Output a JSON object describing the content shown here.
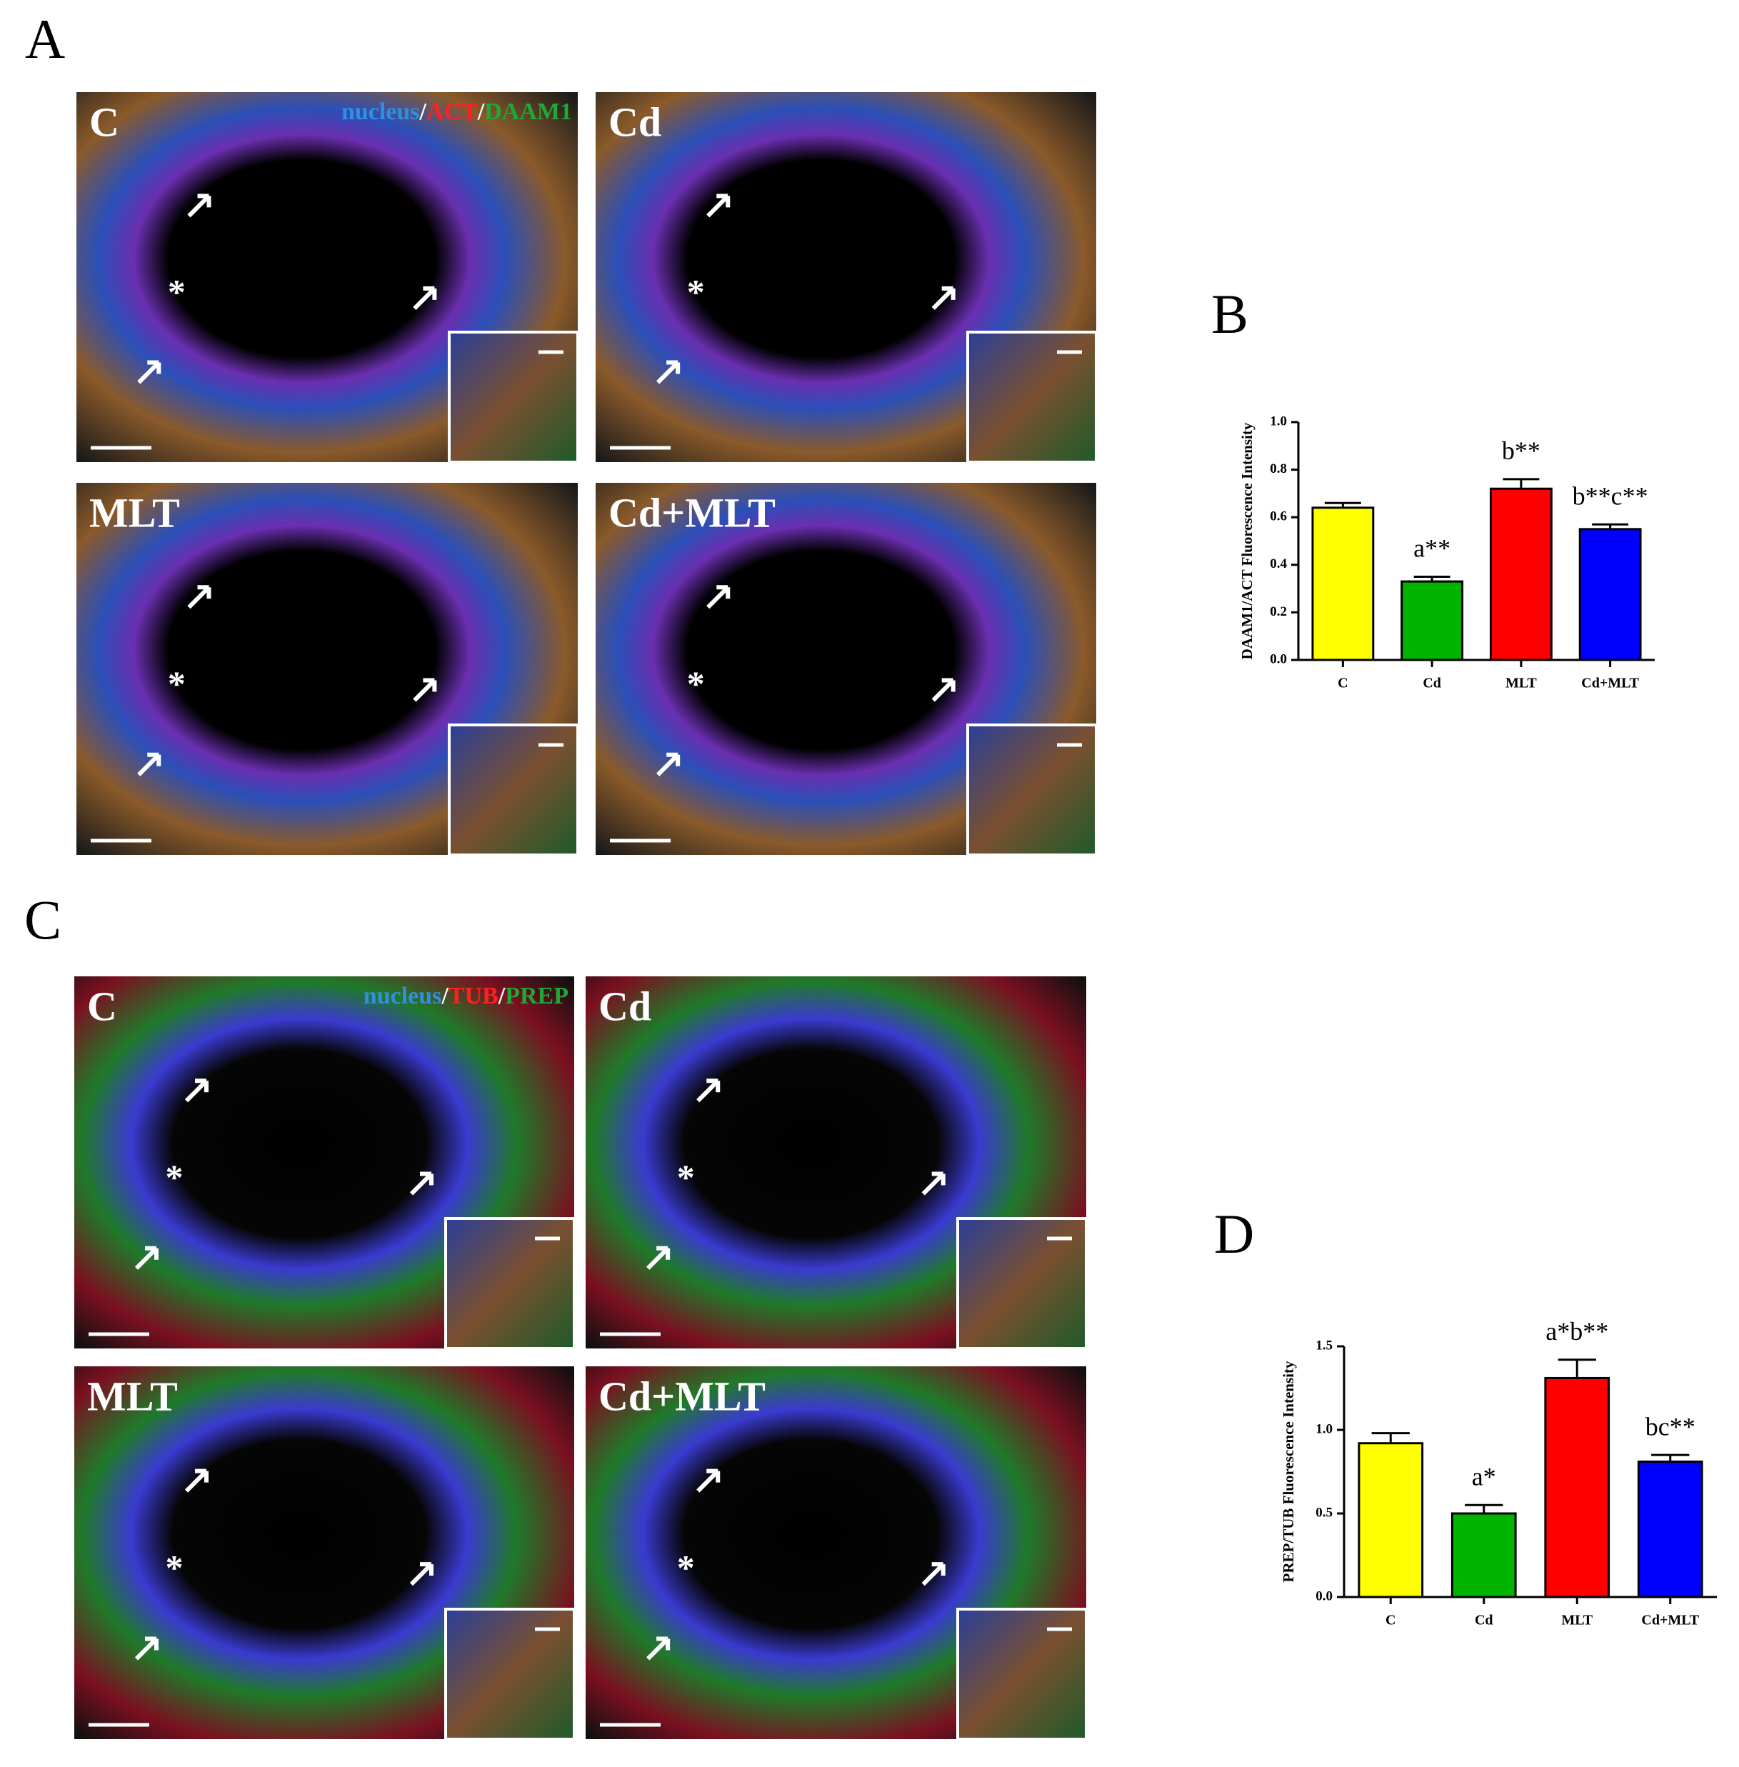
{
  "panels": [
    {
      "letter": "A",
      "stain": [
        {
          "text": "nucleus",
          "color": "#2f8fe0"
        },
        {
          "text": "/",
          "color": "#ffffff"
        },
        {
          "text": "ACT",
          "color": "#ff2020"
        },
        {
          "text": "/",
          "color": "#ffffff"
        },
        {
          "text": "DAAM1",
          "color": "#1fa83a"
        }
      ],
      "images": [
        {
          "label": "C"
        },
        {
          "label": "Cd"
        },
        {
          "label": "MLT"
        },
        {
          "label": "Cd+MLT"
        }
      ]
    },
    {
      "letter": "C",
      "stain": [
        {
          "text": "nucleus",
          "color": "#2f8fe0"
        },
        {
          "text": "/",
          "color": "#ffffff"
        },
        {
          "text": "TUB",
          "color": "#ff2020"
        },
        {
          "text": "/",
          "color": "#ffffff"
        },
        {
          "text": "PREP",
          "color": "#1fa83a"
        }
      ],
      "images": [
        {
          "label": "C"
        },
        {
          "label": "Cd"
        },
        {
          "label": "MLT"
        },
        {
          "label": "Cd+MLT"
        }
      ]
    }
  ],
  "chart_data": [
    {
      "type": "bar",
      "panel_label": "B",
      "ylabel": "DAAM1/ACT Fluorescence Intensity",
      "categories": [
        "C",
        "Cd",
        "MLT",
        "Cd+MLT"
      ],
      "values": [
        0.64,
        0.33,
        0.72,
        0.55
      ],
      "errors": [
        0.02,
        0.02,
        0.04,
        0.02
      ],
      "colors": [
        "#ffff00",
        "#00b400",
        "#ff0000",
        "#0000ff"
      ],
      "annotations": [
        null,
        "a**",
        "b**",
        "b**c**"
      ],
      "ylim": [
        0,
        1
      ],
      "yticks": [
        {
          "value": 0,
          "label": "0.0"
        },
        0.2,
        0.4,
        0.6,
        0.8,
        {
          "value": 1,
          "label": "1.0"
        }
      ]
    },
    {
      "type": "bar",
      "panel_label": "D",
      "ylabel": "PREP/TUB Fluorescence Intensity",
      "categories": [
        "C",
        "Cd",
        "MLT",
        "Cd+MLT"
      ],
      "values": [
        0.92,
        0.5,
        1.31,
        0.81
      ],
      "errors": [
        0.06,
        0.05,
        0.11,
        0.04
      ],
      "colors": [
        "#ffff00",
        "#00b400",
        "#ff0000",
        "#0000ff"
      ],
      "annotations": [
        null,
        "a*",
        "a*b**",
        "bc**"
      ],
      "ylim": [
        0,
        1.5
      ],
      "yticks": [
        {
          "value": 0,
          "label": "0.0"
        },
        0.5,
        {
          "value": 1,
          "label": "1.0"
        },
        1.5
      ]
    }
  ]
}
